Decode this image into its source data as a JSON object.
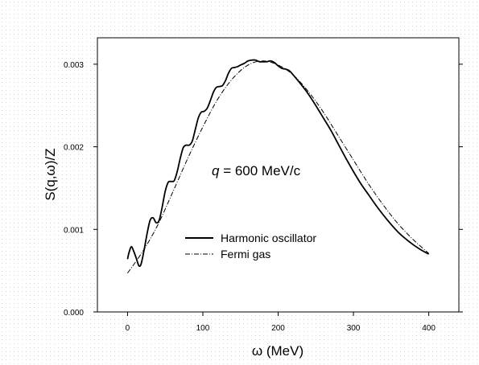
{
  "chart_data": {
    "type": "line",
    "title": "",
    "xlabel": "ω (MeV)",
    "ylabel": "S(q,ω)/Z",
    "xlim": [
      -40,
      440
    ],
    "ylim": [
      0.0,
      0.00332
    ],
    "xticks": [
      0,
      100,
      200,
      300,
      400
    ],
    "yticks": [
      0.0,
      0.001,
      0.002,
      0.003
    ],
    "xtick_labels": [
      "0",
      "100",
      "200",
      "300",
      "400"
    ],
    "ytick_labels": [
      "0.000",
      "0.001",
      "0.002",
      "0.003"
    ],
    "grid": false,
    "legend_position": "center-left",
    "annotation": {
      "q": "q",
      "rest": " = 600 MeV/c"
    },
    "series": [
      {
        "name": "Harmonic oscillator",
        "style": "solid",
        "x": [
          0,
          2,
          5,
          8,
          12,
          15,
          18,
          22,
          26,
          30,
          34,
          38,
          42,
          46,
          50,
          54,
          58,
          62,
          66,
          70,
          74,
          78,
          82,
          86,
          90,
          94,
          98,
          102,
          106,
          110,
          114,
          118,
          122,
          126,
          130,
          134,
          138,
          142,
          146,
          150,
          155,
          160,
          165,
          170,
          175,
          180,
          185,
          190,
          195,
          200,
          205,
          210,
          215,
          220,
          230,
          240,
          250,
          260,
          270,
          280,
          290,
          300,
          310,
          320,
          330,
          340,
          350,
          360,
          370,
          380,
          390,
          400
        ],
        "y": [
          0.00064,
          0.00072,
          0.00079,
          0.00074,
          0.00064,
          0.00056,
          0.00058,
          0.00075,
          0.00095,
          0.00111,
          0.00114,
          0.00108,
          0.00111,
          0.00127,
          0.00146,
          0.00157,
          0.00158,
          0.00159,
          0.0017,
          0.00186,
          0.00199,
          0.00202,
          0.00202,
          0.00207,
          0.00221,
          0.00235,
          0.00242,
          0.00243,
          0.00247,
          0.00256,
          0.00266,
          0.00272,
          0.00273,
          0.00274,
          0.0028,
          0.00289,
          0.00295,
          0.00296,
          0.00297,
          0.00299,
          0.00301,
          0.00304,
          0.00305,
          0.00305,
          0.00303,
          0.00303,
          0.00303,
          0.00304,
          0.00302,
          0.00298,
          0.00295,
          0.00294,
          0.00292,
          0.00287,
          0.00276,
          0.00264,
          0.0025,
          0.00235,
          0.0022,
          0.00203,
          0.00186,
          0.0017,
          0.00155,
          0.00142,
          0.00129,
          0.00117,
          0.00106,
          0.00096,
          0.00088,
          0.00081,
          0.00075,
          0.0007
        ]
      },
      {
        "name": "Fermi gas",
        "style": "dashdot",
        "x": [
          0,
          20,
          40,
          60,
          80,
          100,
          120,
          140,
          160,
          180,
          200,
          220,
          240,
          260,
          280,
          300,
          320,
          340,
          360,
          380,
          400
        ],
        "y": [
          0.00047,
          0.00073,
          0.00105,
          0.00145,
          0.00186,
          0.00224,
          0.00258,
          0.00283,
          0.00299,
          0.00304,
          0.00299,
          0.00287,
          0.00267,
          0.00242,
          0.00213,
          0.00184,
          0.00155,
          0.00129,
          0.00106,
          0.00087,
          0.00071
        ]
      }
    ]
  }
}
